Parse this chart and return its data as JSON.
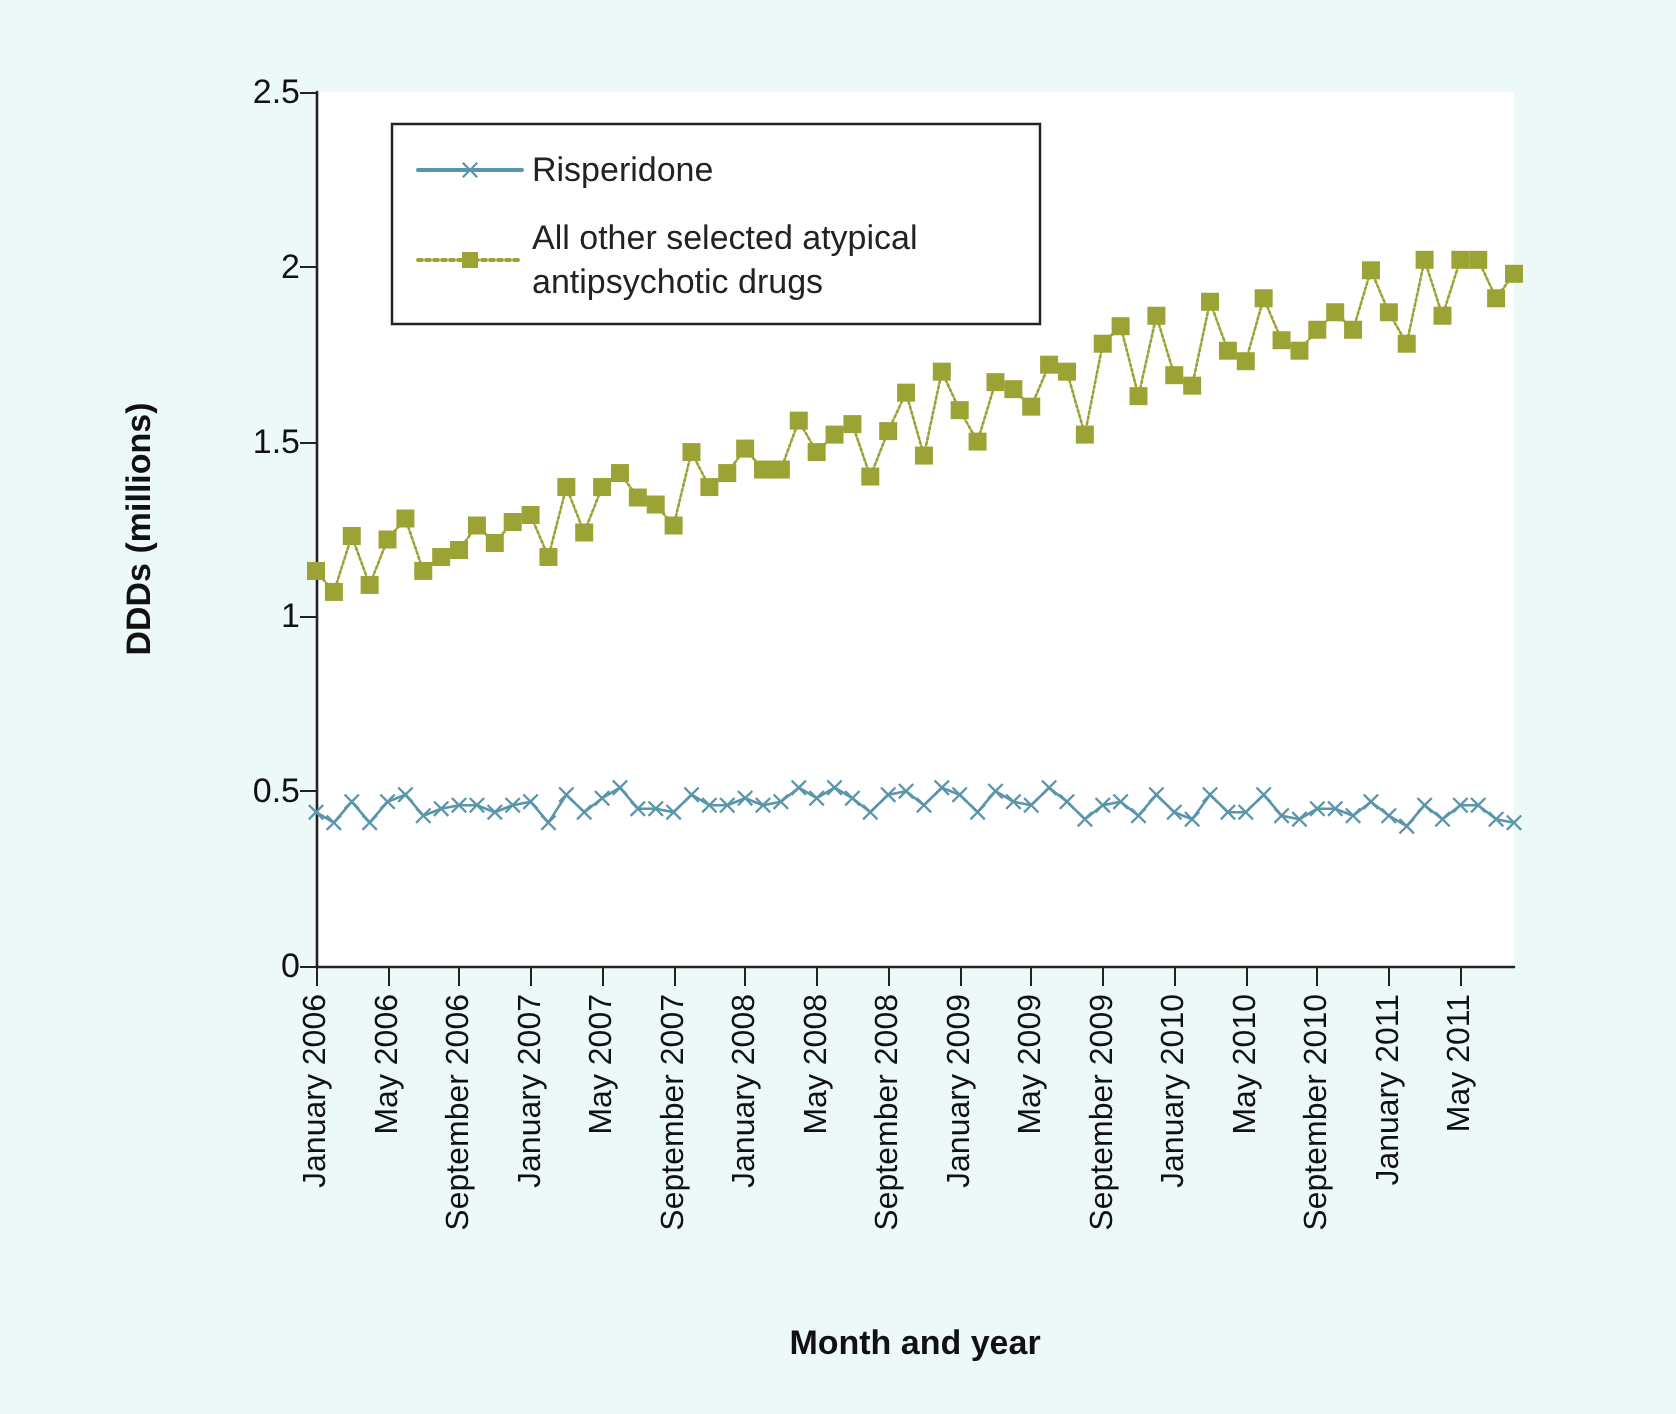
{
  "chart_data": {
    "type": "line",
    "xlabel": "Month and year",
    "ylabel": "DDDs (millions)",
    "categories": [
      "January 2006",
      null,
      null,
      null,
      "May 2006",
      null,
      null,
      null,
      "September 2006",
      null,
      null,
      null,
      "January 2007",
      null,
      null,
      null,
      "May 2007",
      null,
      null,
      null,
      "September 2007",
      null,
      null,
      null,
      "January 2008",
      null,
      null,
      null,
      "May 2008",
      null,
      null,
      null,
      "September 2008",
      null,
      null,
      null,
      "January 2009",
      null,
      null,
      null,
      "May 2009",
      null,
      null,
      null,
      "September 2009",
      null,
      null,
      null,
      "January 2010",
      null,
      null,
      null,
      "May 2010",
      null,
      null,
      null,
      "September 2010",
      null,
      null,
      null,
      "January 2011",
      null,
      null,
      null,
      "May 2011",
      null,
      null,
      null
    ],
    "series": [
      {
        "name": "Risperidone",
        "color": "#5a96ab",
        "marker": "cross",
        "line_style": "solid",
        "values": [
          0.44,
          0.41,
          0.47,
          0.41,
          0.47,
          0.49,
          0.43,
          0.45,
          0.46,
          0.46,
          0.44,
          0.46,
          0.47,
          0.41,
          0.49,
          0.44,
          0.48,
          0.51,
          0.45,
          0.45,
          0.44,
          0.49,
          0.46,
          0.46,
          0.48,
          0.46,
          0.47,
          0.51,
          0.48,
          0.51,
          0.48,
          0.44,
          0.49,
          0.5,
          0.46,
          0.51,
          0.49,
          0.44,
          0.5,
          0.47,
          0.46,
          0.51,
          0.47,
          0.42,
          0.46,
          0.47,
          0.43,
          0.49,
          0.44,
          0.42,
          0.49,
          0.44,
          0.44,
          0.49,
          0.43,
          0.42,
          0.45,
          0.45,
          0.43,
          0.47,
          0.43,
          0.4,
          0.46,
          0.42,
          0.46,
          0.46,
          0.42,
          0.41
        ]
      },
      {
        "name": "All other selected atypical antipsychotic drugs",
        "color": "#9ca335",
        "marker": "square",
        "line_style": "dotted",
        "values": [
          1.13,
          1.07,
          1.23,
          1.09,
          1.22,
          1.28,
          1.13,
          1.17,
          1.19,
          1.26,
          1.21,
          1.27,
          1.29,
          1.17,
          1.37,
          1.24,
          1.37,
          1.41,
          1.34,
          1.32,
          1.26,
          1.47,
          1.37,
          1.41,
          1.48,
          1.42,
          1.42,
          1.56,
          1.47,
          1.52,
          1.55,
          1.4,
          1.53,
          1.64,
          1.46,
          1.7,
          1.59,
          1.5,
          1.67,
          1.65,
          1.6,
          1.72,
          1.7,
          1.52,
          1.78,
          1.83,
          1.63,
          1.86,
          1.69,
          1.66,
          1.9,
          1.76,
          1.73,
          1.91,
          1.79,
          1.76,
          1.82,
          1.87,
          1.82,
          1.99,
          1.87,
          1.78,
          2.02,
          1.86,
          2.02,
          2.02,
          1.91,
          1.98
        ]
      }
    ],
    "ylim": [
      0,
      2.5
    ],
    "yticks": [
      0,
      0.5,
      1,
      1.5,
      2,
      2.5
    ],
    "grid": false,
    "legend": "top left"
  }
}
